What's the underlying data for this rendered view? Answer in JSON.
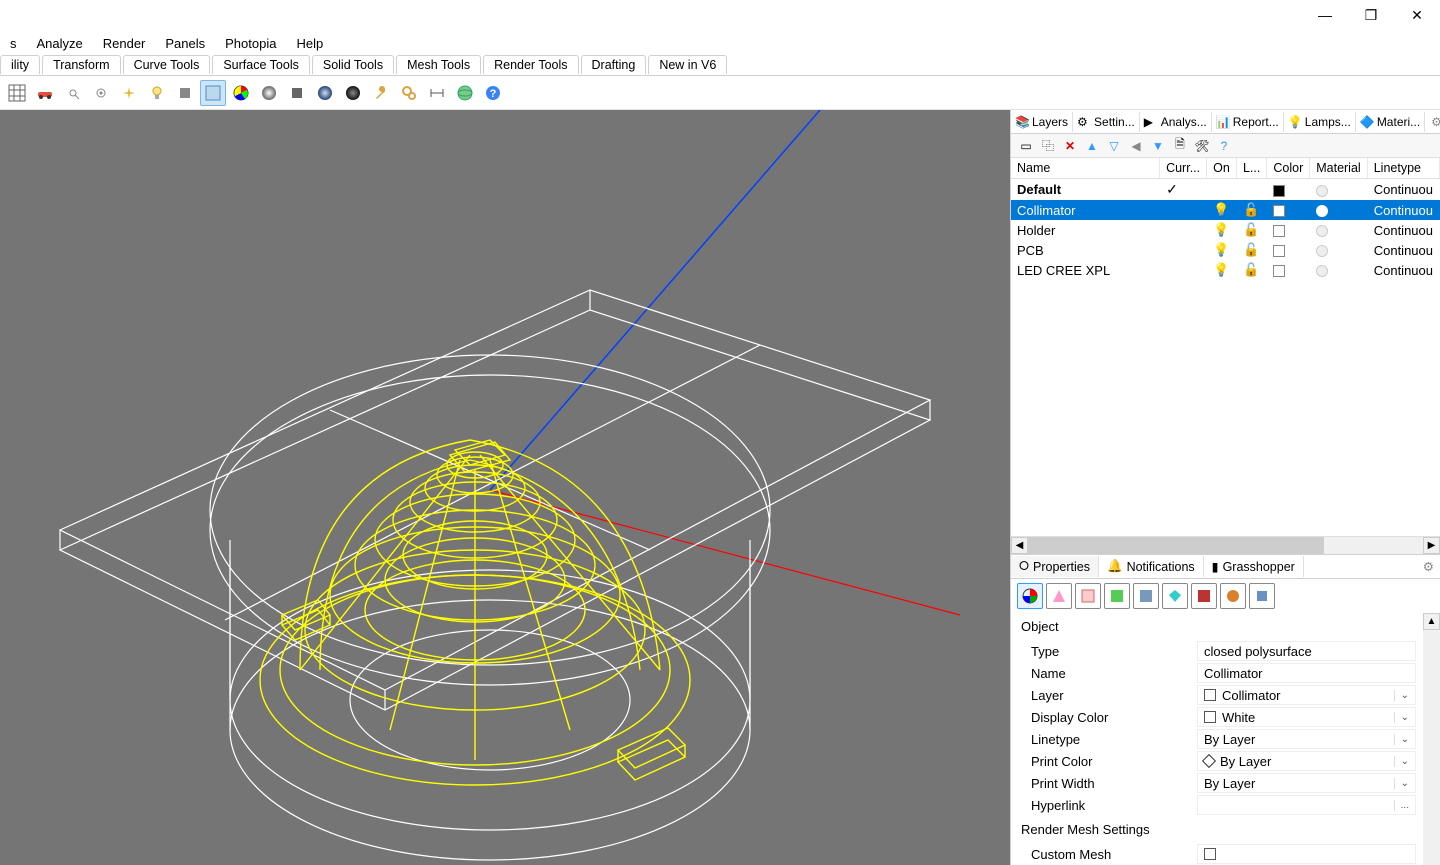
{
  "window": {
    "minimize": "—",
    "maximize": "❐",
    "close": "✕"
  },
  "menubar": [
    "s",
    "Analyze",
    "Render",
    "Panels",
    "Photopia",
    "Help"
  ],
  "tabbar": [
    "ility",
    "Transform",
    "Curve Tools",
    "Surface Tools",
    "Solid Tools",
    "Mesh Tools",
    "Render Tools",
    "Drafting",
    "New in V6"
  ],
  "side_tabs": [
    {
      "label": "Layers",
      "icon": "layers-icon",
      "active": true
    },
    {
      "label": "Settin...",
      "icon": "gear-icon"
    },
    {
      "label": "Analys...",
      "icon": "play-icon"
    },
    {
      "label": "Report...",
      "icon": "report-icon"
    },
    {
      "label": "Lamps...",
      "icon": "lamp-icon"
    },
    {
      "label": "Materi...",
      "icon": "material-icon"
    }
  ],
  "layer_columns": [
    "Name",
    "Curr...",
    "On",
    "L...",
    "Color",
    "Material",
    "Linetype"
  ],
  "layers": [
    {
      "name": "Default",
      "current": "✓",
      "on": "",
      "lock": "",
      "color": "#000000",
      "linetype": "Continuou",
      "default": true
    },
    {
      "name": "Collimator",
      "current": "",
      "on": "💡",
      "lock": "🔓",
      "color": "#ffffff",
      "linetype": "Continuou",
      "selected": true
    },
    {
      "name": "Holder",
      "current": "",
      "on": "💡",
      "lock": "🔓",
      "color": "#ffffff",
      "linetype": "Continuou"
    },
    {
      "name": "PCB",
      "current": "",
      "on": "💡",
      "lock": "🔓",
      "color": "#ffffff",
      "linetype": "Continuou"
    },
    {
      "name": "LED CREE XPL",
      "current": "",
      "on": "💡",
      "lock": "🔓",
      "color": "#ffffff",
      "linetype": "Continuou"
    }
  ],
  "props_tabs": [
    {
      "label": "Properties",
      "active": true
    },
    {
      "label": "Notifications"
    },
    {
      "label": "Grasshopper"
    }
  ],
  "props": {
    "section": "Object",
    "rows": [
      {
        "label": "Type",
        "value": "closed polysurface",
        "dd": false
      },
      {
        "label": "Name",
        "value": "Collimator",
        "dd": false
      },
      {
        "label": "Layer",
        "value": "Collimator",
        "swatch": "#ffffff",
        "box": true,
        "dd": true
      },
      {
        "label": "Display Color",
        "value": "White",
        "swatch": "#ffffff",
        "box": true,
        "dd": true
      },
      {
        "label": "Linetype",
        "value": "By Layer",
        "dd": true
      },
      {
        "label": "Print Color",
        "value": "By Layer",
        "diamond": true,
        "dd": true
      },
      {
        "label": "Print Width",
        "value": "By Layer",
        "dd": true
      },
      {
        "label": "Hyperlink",
        "value": "",
        "ellipsis": true
      }
    ],
    "section2": "Render Mesh Settings",
    "custom_mesh": "Custom Mesh"
  },
  "viewport": {
    "bg": "#757575",
    "wire_white": "#ffffff",
    "wire_yellow": "#ffff00",
    "axis_red": "#ff0000",
    "axis_blue": "#0040ff"
  }
}
